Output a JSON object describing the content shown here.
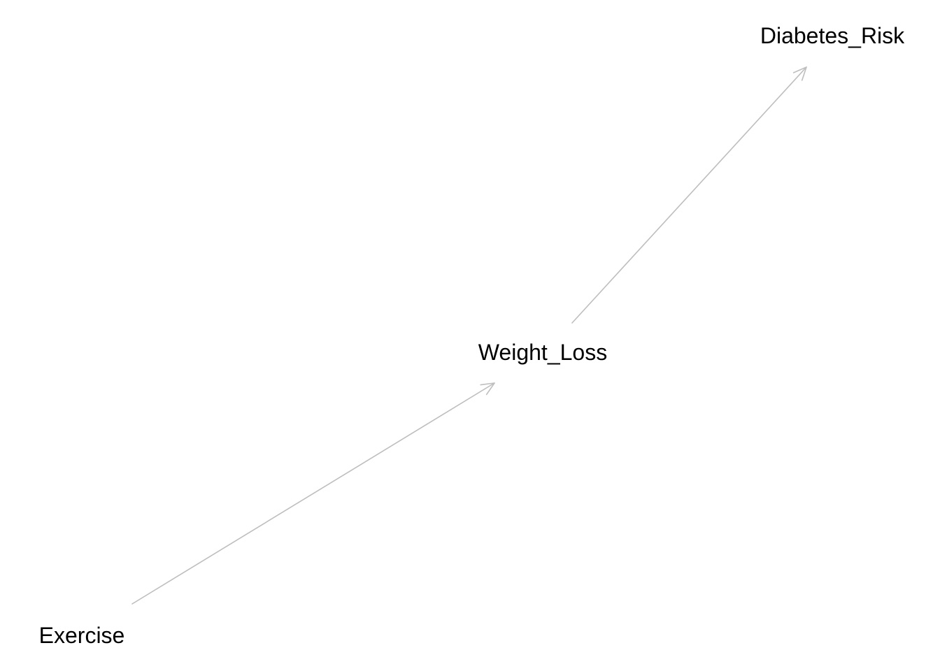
{
  "diagram": {
    "type": "directed-graph",
    "edge_color": "#bebebe",
    "label_color": "#000000",
    "nodes": [
      {
        "id": "exercise",
        "label": "Exercise"
      },
      {
        "id": "weight_loss",
        "label": "Weight_Loss"
      },
      {
        "id": "diabetes_risk",
        "label": "Diabetes_Risk"
      }
    ],
    "edges": [
      {
        "from": "exercise",
        "to": "weight_loss"
      },
      {
        "from": "weight_loss",
        "to": "diabetes_risk"
      }
    ]
  }
}
